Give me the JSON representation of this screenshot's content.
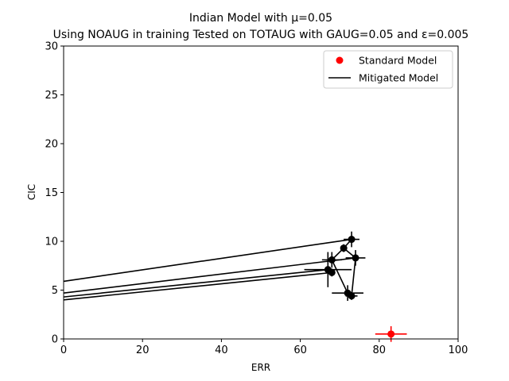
{
  "chart_data": {
    "type": "scatter",
    "title": "Indian Model with μ=0.05",
    "subtitle": "Using NOAUG in training Tested on TOTAUG with GAUG=0.05 and ε=0.005",
    "xlabel": "ERR",
    "ylabel": "CIC",
    "xlim": [
      0,
      100
    ],
    "ylim": [
      0,
      30
    ],
    "xticks": [
      "0",
      "20",
      "40",
      "60",
      "80",
      "100"
    ],
    "yticks": [
      "0",
      "5",
      "10",
      "15",
      "20",
      "25",
      "30"
    ],
    "grid": false,
    "legend_position": "top-right",
    "legend": [
      {
        "label": "Standard Model",
        "color": "#ff0000",
        "marker": "dot"
      },
      {
        "label": "Mitigated Model",
        "color": "#000000",
        "marker": "line"
      }
    ],
    "standard_model": {
      "color": "#ff0000",
      "points": [
        {
          "x": 83,
          "y": 0.5,
          "xerr": 4,
          "yerr": 0.8
        }
      ]
    },
    "mitigated_model": {
      "color": "#000000",
      "points": [
        {
          "x": 73,
          "y": 10.2,
          "xerr": 2,
          "yerr": 0.8
        },
        {
          "x": 71,
          "y": 9.3,
          "xerr": 0.8,
          "yerr": 0.4
        },
        {
          "x": 74,
          "y": 8.3,
          "xerr": 2.5,
          "yerr": 0.8
        },
        {
          "x": 68,
          "y": 8.1,
          "xerr": 2.5,
          "yerr": 0.8
        },
        {
          "x": 67,
          "y": 7.1,
          "xerr": 6,
          "yerr": 1.8
        },
        {
          "x": 68,
          "y": 6.8,
          "xerr": 0.8,
          "yerr": 0.4
        },
        {
          "x": 72,
          "y": 4.7,
          "xerr": 4,
          "yerr": 0.8
        },
        {
          "x": 73,
          "y": 4.4,
          "xerr": 1.5,
          "yerr": 0.4
        }
      ],
      "connections": [
        [
          1,
          0
        ],
        [
          1,
          2
        ],
        [
          1,
          3
        ],
        [
          3,
          6
        ],
        [
          2,
          7
        ]
      ],
      "lines": [
        {
          "x": [
            0,
            73
          ],
          "y": [
            5.9,
            10.2
          ]
        },
        {
          "x": [
            0,
            74
          ],
          "y": [
            4.7,
            8.3
          ]
        },
        {
          "x": [
            0,
            67
          ],
          "y": [
            4.3,
            7.1
          ]
        },
        {
          "x": [
            0,
            68
          ],
          "y": [
            4.0,
            6.8
          ]
        }
      ]
    }
  }
}
